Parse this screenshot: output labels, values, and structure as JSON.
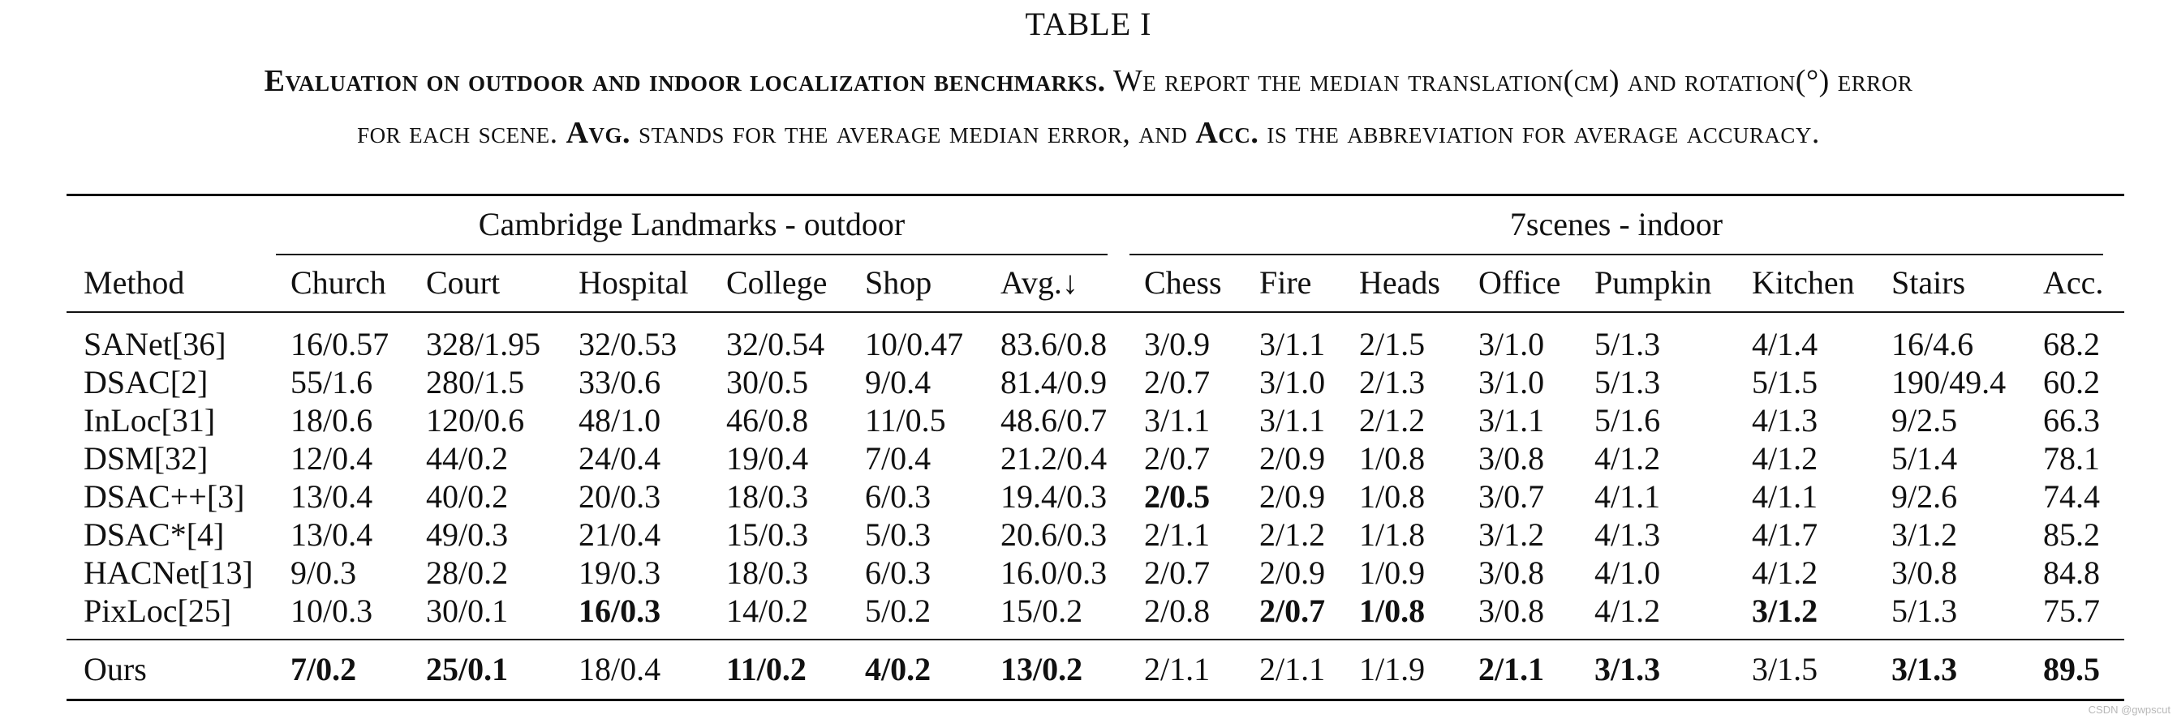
{
  "table_label": "TABLE I",
  "caption": {
    "line1_bold": "Evaluation on outdoor and indoor localization benchmarks.",
    "line1_rest": " We report the median translation(cm) and rotation(°) error",
    "line2_a": "for each scene. ",
    "line2_bold1": "Avg.",
    "line2_b": " stands for the average median error, and ",
    "line2_bold2": "Acc.",
    "line2_c": " is the abbreviation for average accuracy."
  },
  "groups": {
    "outdoor": "Cambridge Landmarks - outdoor",
    "indoor": "7scenes - indoor"
  },
  "headers": [
    "Method",
    "Church",
    "Court",
    "Hospital",
    "College",
    "Shop",
    "Avg.↓",
    "Chess",
    "Fire",
    "Heads",
    "Office",
    "Pumpkin",
    "Kitchen",
    "Stairs",
    "Acc."
  ],
  "rows": [
    {
      "cells": [
        "SANet[36]",
        "16/0.57",
        "328/1.95",
        "32/0.53",
        "32/0.54",
        "10/0.47",
        "83.6/0.8",
        "3/0.9",
        "3/1.1",
        "2/1.5",
        "3/1.0",
        "5/1.3",
        "4/1.4",
        "16/4.6",
        "68.2"
      ],
      "bold": []
    },
    {
      "cells": [
        "DSAC[2]",
        "55/1.6",
        "280/1.5",
        "33/0.6",
        "30/0.5",
        "9/0.4",
        "81.4/0.9",
        "2/0.7",
        "3/1.0",
        "2/1.3",
        "3/1.0",
        "5/1.3",
        "5/1.5",
        "190/49.4",
        "60.2"
      ],
      "bold": []
    },
    {
      "cells": [
        "InLoc[31]",
        "18/0.6",
        "120/0.6",
        "48/1.0",
        "46/0.8",
        "11/0.5",
        "48.6/0.7",
        "3/1.1",
        "3/1.1",
        "2/1.2",
        "3/1.1",
        "5/1.6",
        "4/1.3",
        "9/2.5",
        "66.3"
      ],
      "bold": []
    },
    {
      "cells": [
        "DSM[32]",
        "12/0.4",
        "44/0.2",
        "24/0.4",
        "19/0.4",
        "7/0.4",
        "21.2/0.4",
        "2/0.7",
        "2/0.9",
        "1/0.8",
        "3/0.8",
        "4/1.2",
        "4/1.2",
        "5/1.4",
        "78.1"
      ],
      "bold": []
    },
    {
      "cells": [
        "DSAC++[3]",
        "13/0.4",
        "40/0.2",
        "20/0.3",
        "18/0.3",
        "6/0.3",
        "19.4/0.3",
        "2/0.5",
        "2/0.9",
        "1/0.8",
        "3/0.7",
        "4/1.1",
        "4/1.1",
        "9/2.6",
        "74.4"
      ],
      "bold": [
        7
      ]
    },
    {
      "cells": [
        "DSAC*[4]",
        "13/0.4",
        "49/0.3",
        "21/0.4",
        "15/0.3",
        "5/0.3",
        "20.6/0.3",
        "2/1.1",
        "2/1.2",
        "1/1.8",
        "3/1.2",
        "4/1.3",
        "4/1.7",
        "3/1.2",
        "85.2"
      ],
      "bold": []
    },
    {
      "cells": [
        "HACNet[13]",
        "9/0.3",
        "28/0.2",
        "19/0.3",
        "18/0.3",
        "6/0.3",
        "16.0/0.3",
        "2/0.7",
        "2/0.9",
        "1/0.9",
        "3/0.8",
        "4/1.0",
        "4/1.2",
        "3/0.8",
        "84.8"
      ],
      "bold": []
    },
    {
      "cells": [
        "PixLoc[25]",
        "10/0.3",
        "30/0.1",
        "16/0.3",
        "14/0.2",
        "5/0.2",
        "15/0.2",
        "2/0.8",
        "2/0.7",
        "1/0.8",
        "3/0.8",
        "4/1.2",
        "3/1.2",
        "5/1.3",
        "75.7"
      ],
      "bold": [
        3,
        8,
        9,
        12
      ]
    }
  ],
  "ours": {
    "cells": [
      "Ours",
      "7/0.2",
      "25/0.1",
      "18/0.4",
      "11/0.2",
      "4/0.2",
      "13/0.2",
      "2/1.1",
      "2/1.1",
      "1/1.9",
      "2/1.1",
      "3/1.3",
      "3/1.5",
      "3/1.3",
      "89.5"
    ],
    "bold": [
      1,
      2,
      4,
      5,
      6,
      10,
      11,
      13,
      14
    ]
  },
  "watermark": "CSDN @gwpscut"
}
